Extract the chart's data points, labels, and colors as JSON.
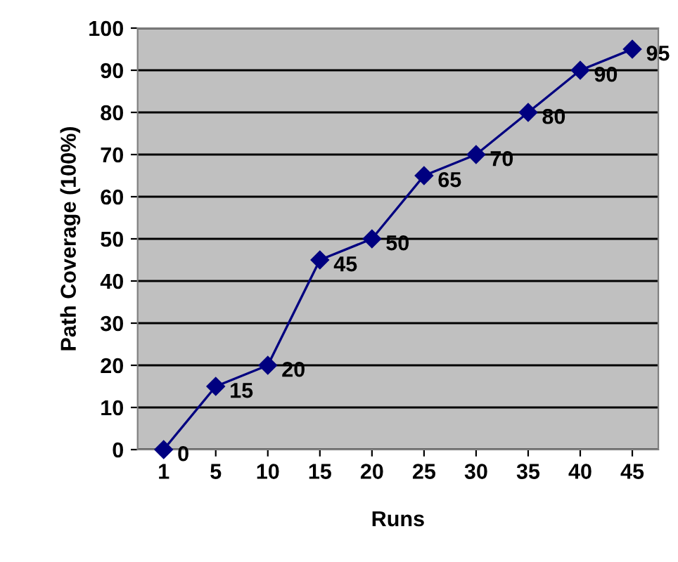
{
  "chart_data": {
    "type": "line",
    "xlabel": "Runs",
    "ylabel": "Path Coverage (100%)",
    "categories": [
      "1",
      "5",
      "10",
      "15",
      "20",
      "25",
      "30",
      "35",
      "40",
      "45"
    ],
    "series": [
      {
        "color": "#000080",
        "values": [
          0,
          15,
          20,
          45,
          50,
          65,
          70,
          80,
          90,
          95
        ]
      }
    ],
    "ylim": [
      0,
      100
    ],
    "yticks": [
      0,
      10,
      20,
      30,
      40,
      50,
      60,
      70,
      80,
      90,
      100
    ],
    "grid": "y",
    "marker": "diamond",
    "line_style": "solid",
    "data_labels": true,
    "legend": false
  }
}
